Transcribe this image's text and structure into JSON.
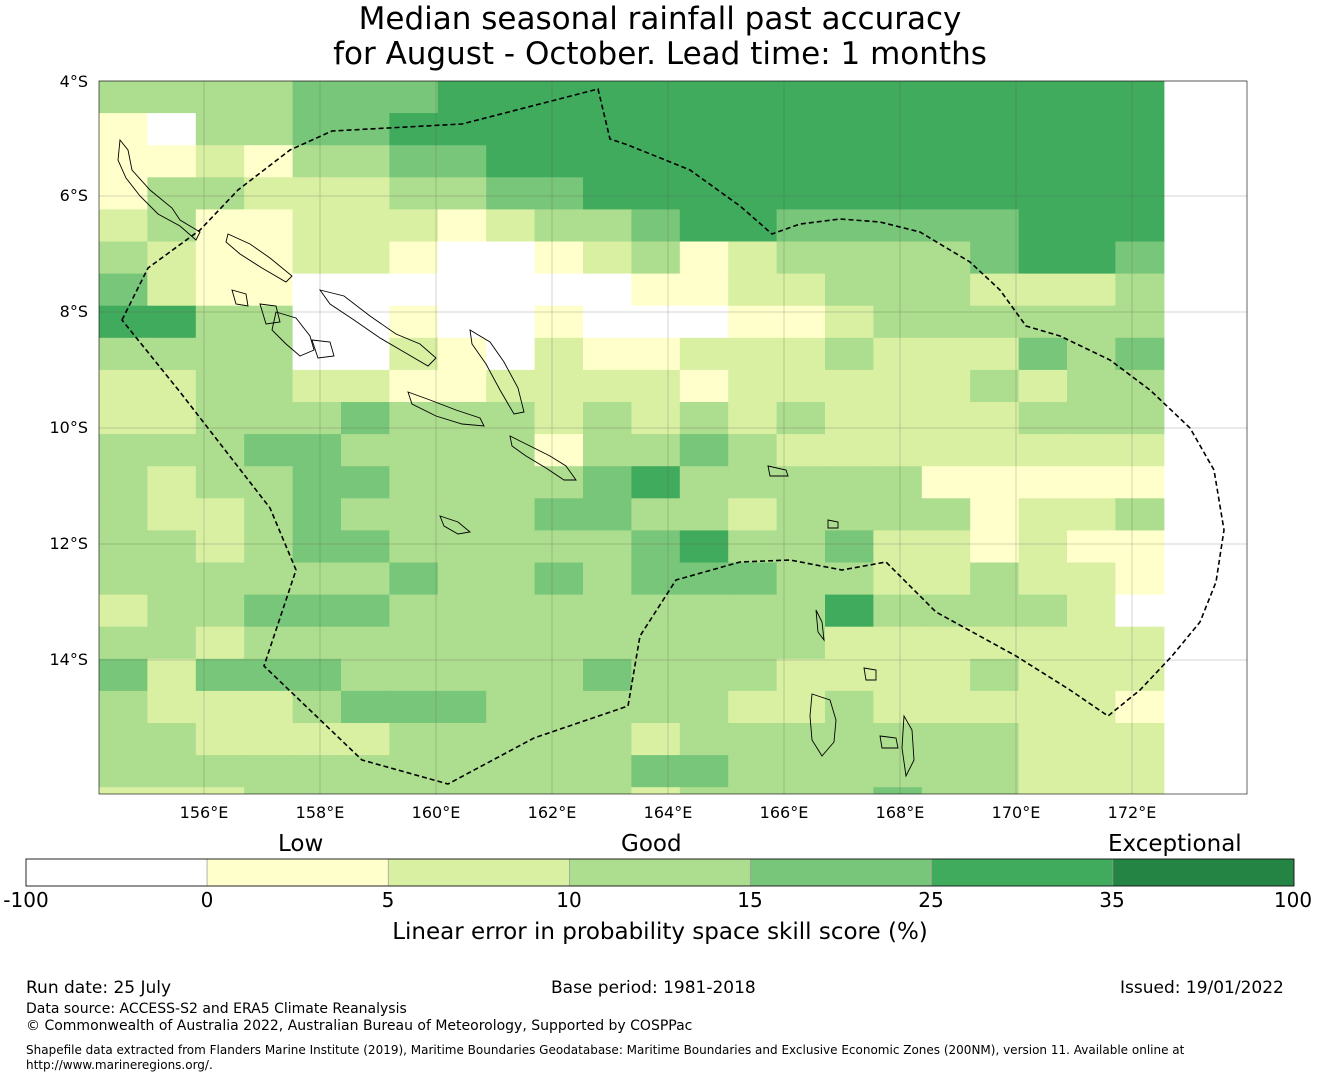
{
  "title": {
    "line1": "Median seasonal rainfall past accuracy",
    "line2": "for August - October. Lead time: 1 months"
  },
  "map": {
    "lat_labels": [
      "4°S",
      "6°S",
      "8°S",
      "10°S",
      "12°S",
      "14°S"
    ],
    "lon_labels": [
      "156°E",
      "158°E",
      "160°E",
      "162°E",
      "164°E",
      "166°E",
      "168°E",
      "170°E",
      "172°E"
    ],
    "region": "Solomon Islands EEZ",
    "grid_lon_start": 154.2,
    "grid_lat_start": -4.0,
    "cell_deg": 0.833,
    "rows": [
      "3333444555555555555555",
      "1033445555555555555555",
      "1121334455555555555555",
      "1332223344555555555555",
      "2311222123345544444555",
      "3211221001231233334554",
      "4211000000011223332223",
      "5533001001000112333333",
      "3333002102112223222434",
      "2233221122221222223233",
      "2233343332323232222333",
      "3334433331334322222222",
      "3233443333453333311111",
      "3223433334433233331223",
      "3323443333345334221211",
      "3333334334344433223221",
      "2334443333333335333320",
      "3323333333333332222222",
      "4244433333433322223222",
      "3222344433333223222221",
      "3322223333323333333222",
      "3333333333344333333222",
      "2223333333323333433222",
      "3222233333323333233011",
      "3222222332233322233000",
      "2222222223333333443212"
    ]
  },
  "colorbar": {
    "colors": [
      "#ffffff",
      "#ffffcc",
      "#d9f0a3",
      "#addd8e",
      "#78c679",
      "#41ab5d",
      "#238443"
    ],
    "ticks": [
      "-100",
      "0",
      "5",
      "10",
      "15",
      "25",
      "35",
      "100"
    ],
    "categories": {
      "low": "Low",
      "good": "Good",
      "exceptional": "Exceptional"
    },
    "label": "Linear error in probability space skill score (%)"
  },
  "footer": {
    "run_date": "Run date: 25 July",
    "base_period": "Base period: 1981-2018",
    "issued": "Issued: 19/01/2022",
    "data_source": "Data source: ACCESS-S2 and ERA5 Climate Reanalysis",
    "copyright": "© Commonwealth of Australia 2022, Australian Bureau of Meteorology, Supported by COSPPac",
    "shapefile": "Shapefile data extracted from Flanders Marine Institute (2019), Maritime Boundaries Geodatabase: Maritime Boundaries and Exclusive Economic Zones (200NM), version 11. Available online at",
    "url": "http://www.marineregions.org/."
  }
}
